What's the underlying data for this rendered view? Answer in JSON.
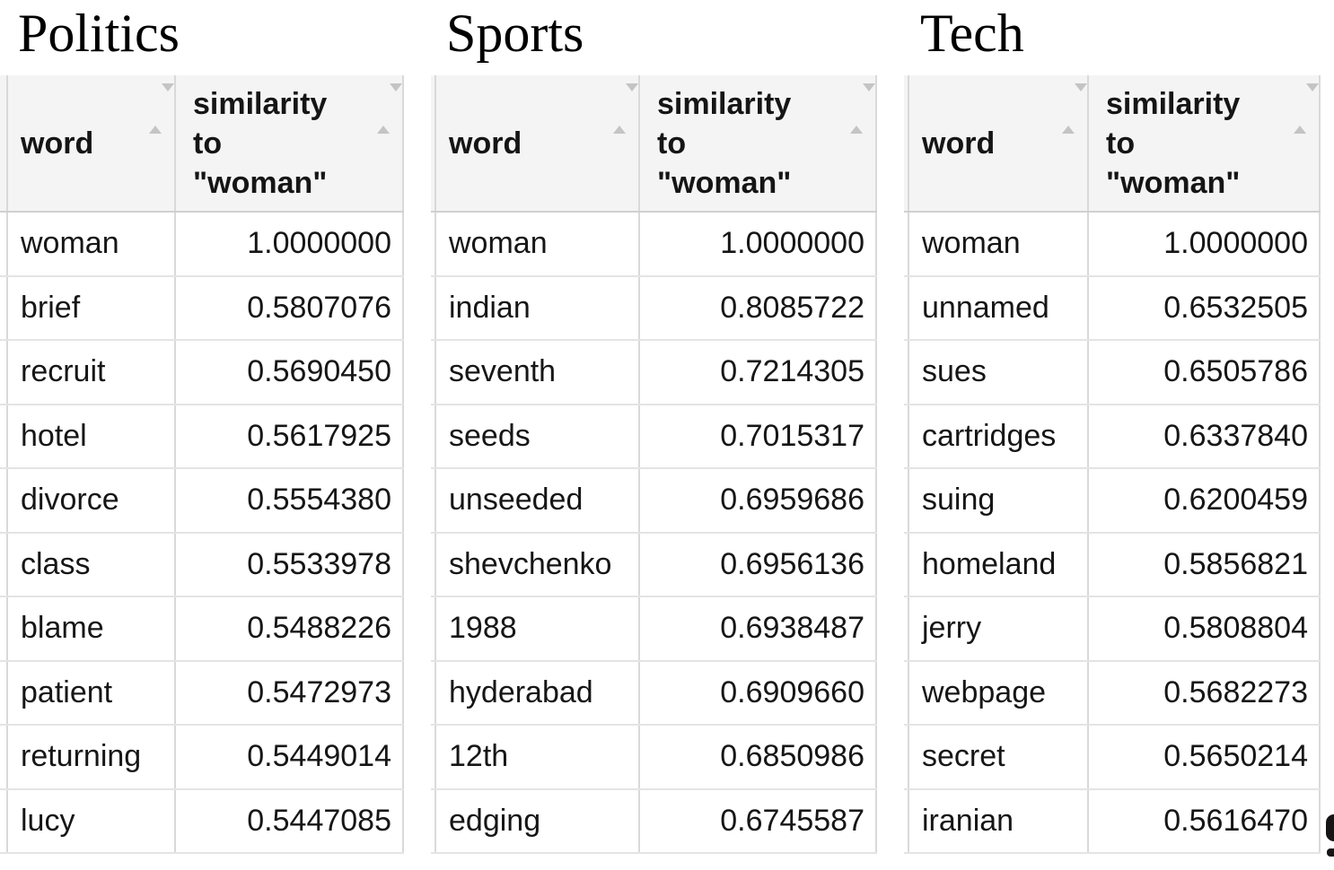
{
  "columns": {
    "word_label": "word",
    "similarity_label": "similarity\nto\n\"woman\""
  },
  "tables": [
    {
      "title": "Politics",
      "rows": [
        {
          "word": "woman",
          "similarity": "1.0000000"
        },
        {
          "word": "brief",
          "similarity": "0.5807076"
        },
        {
          "word": "recruit",
          "similarity": "0.5690450"
        },
        {
          "word": "hotel",
          "similarity": "0.5617925"
        },
        {
          "word": "divorce",
          "similarity": "0.5554380"
        },
        {
          "word": "class",
          "similarity": "0.5533978"
        },
        {
          "word": "blame",
          "similarity": "0.5488226"
        },
        {
          "word": "patient",
          "similarity": "0.5472973"
        },
        {
          "word": "returning",
          "similarity": "0.5449014"
        },
        {
          "word": "lucy",
          "similarity": "0.5447085"
        }
      ]
    },
    {
      "title": "Sports",
      "rows": [
        {
          "word": "woman",
          "similarity": "1.0000000"
        },
        {
          "word": "indian",
          "similarity": "0.8085722"
        },
        {
          "word": "seventh",
          "similarity": "0.7214305"
        },
        {
          "word": "seeds",
          "similarity": "0.7015317"
        },
        {
          "word": "unseeded",
          "similarity": "0.6959686"
        },
        {
          "word": "shevchenko",
          "similarity": "0.6956136"
        },
        {
          "word": "1988",
          "similarity": "0.6938487"
        },
        {
          "word": "hyderabad",
          "similarity": "0.6909660"
        },
        {
          "word": "12th",
          "similarity": "0.6850986"
        },
        {
          "word": "edging",
          "similarity": "0.6745587"
        }
      ]
    },
    {
      "title": "Tech",
      "rows": [
        {
          "word": "woman",
          "similarity": "1.0000000"
        },
        {
          "word": "unnamed",
          "similarity": "0.6532505"
        },
        {
          "word": "sues",
          "similarity": "0.6505786"
        },
        {
          "word": "cartridges",
          "similarity": "0.6337840"
        },
        {
          "word": "suing",
          "similarity": "0.6200459"
        },
        {
          "word": "homeland",
          "similarity": "0.5856821"
        },
        {
          "word": "jerry",
          "similarity": "0.5808804"
        },
        {
          "word": "webpage",
          "similarity": "0.5682273"
        },
        {
          "word": "secret",
          "similarity": "0.5650214"
        },
        {
          "word": "iranian",
          "similarity": "0.5616470"
        }
      ]
    }
  ],
  "chart_data": [
    {
      "type": "table",
      "title": "Politics",
      "columns": [
        "word",
        "similarity to \"woman\""
      ],
      "rows": [
        [
          "woman",
          1.0
        ],
        [
          "brief",
          0.5807076
        ],
        [
          "recruit",
          0.569045
        ],
        [
          "hotel",
          0.5617925
        ],
        [
          "divorce",
          0.555438
        ],
        [
          "class",
          0.5533978
        ],
        [
          "blame",
          0.5488226
        ],
        [
          "patient",
          0.5472973
        ],
        [
          "returning",
          0.5449014
        ],
        [
          "lucy",
          0.5447085
        ]
      ]
    },
    {
      "type": "table",
      "title": "Sports",
      "columns": [
        "word",
        "similarity to \"woman\""
      ],
      "rows": [
        [
          "woman",
          1.0
        ],
        [
          "indian",
          0.8085722
        ],
        [
          "seventh",
          0.7214305
        ],
        [
          "seeds",
          0.7015317
        ],
        [
          "unseeded",
          0.6959686
        ],
        [
          "shevchenko",
          0.6956136
        ],
        [
          "1988",
          0.6938487
        ],
        [
          "hyderabad",
          0.690966
        ],
        [
          "12th",
          0.6850986
        ],
        [
          "edging",
          0.6745587
        ]
      ]
    },
    {
      "type": "table",
      "title": "Tech",
      "columns": [
        "word",
        "similarity to \"woman\""
      ],
      "rows": [
        [
          "woman",
          1.0
        ],
        [
          "unnamed",
          0.6532505
        ],
        [
          "sues",
          0.6505786
        ],
        [
          "cartridges",
          0.633784
        ],
        [
          "suing",
          0.6200459
        ],
        [
          "homeland",
          0.5856821
        ],
        [
          "jerry",
          0.5808804
        ],
        [
          "webpage",
          0.5682273
        ],
        [
          "secret",
          0.5650214
        ],
        [
          "iranian",
          0.561647
        ]
      ]
    }
  ],
  "colors": {
    "header_bg": "#f4f4f4",
    "column_border": "#d9d9d9",
    "row_border": "#e4e4e4",
    "header_bottom_border": "#d0d0d0",
    "sort_icon": "#c4c4c4",
    "text": "#161616"
  },
  "icons": {
    "sort": "sort-arrows-icon"
  }
}
